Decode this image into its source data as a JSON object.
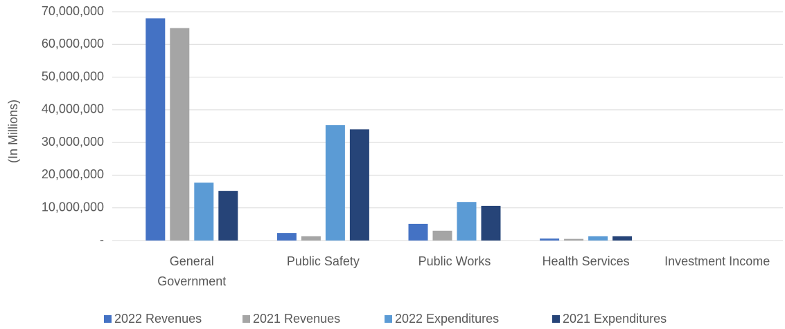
{
  "chart_data": {
    "type": "bar",
    "y_label": "(In Millions)",
    "categories": [
      "General\nGovernment",
      "Public Safety",
      "Public Works",
      "Health Services",
      "Investment Income"
    ],
    "series": [
      {
        "name": "2022 Revenues",
        "color": "#4472c4",
        "values": [
          68000000,
          2300000,
          5100000,
          600000,
          0
        ]
      },
      {
        "name": "2021 Revenues",
        "color": "#a5a5a5",
        "values": [
          65000000,
          1300000,
          3000000,
          500000,
          0
        ]
      },
      {
        "name": "2022 Expenditures",
        "color": "#5b9bd5",
        "values": [
          17700000,
          35300000,
          11800000,
          1300000,
          0
        ]
      },
      {
        "name": "2021 Expenditures",
        "color": "#264478",
        "values": [
          15200000,
          34000000,
          10600000,
          1300000,
          0
        ]
      }
    ],
    "ylim": [
      0,
      70000000
    ],
    "yticks": [
      {
        "value": 0,
        "label": "-"
      },
      {
        "value": 10000000,
        "label": "10,000,000"
      },
      {
        "value": 20000000,
        "label": "20,000,000"
      },
      {
        "value": 30000000,
        "label": "30,000,000"
      },
      {
        "value": 40000000,
        "label": "40,000,000"
      },
      {
        "value": 50000000,
        "label": "50,000,000"
      },
      {
        "value": 60000000,
        "label": "60,000,000"
      },
      {
        "value": 70000000,
        "label": "70,000,000"
      }
    ],
    "grid": true
  }
}
